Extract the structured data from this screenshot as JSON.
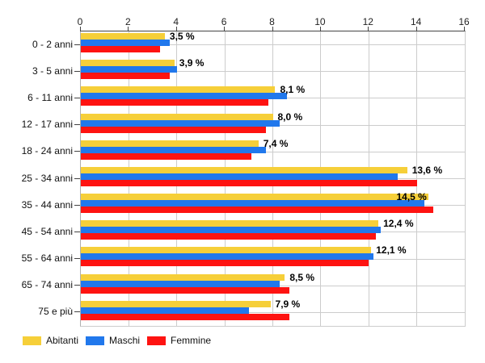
{
  "chart_data": {
    "type": "bar",
    "orientation": "horizontal",
    "title": "",
    "xlabel": "",
    "ylabel": "",
    "xlim": [
      0,
      16
    ],
    "x_ticks": [
      0,
      2,
      4,
      6,
      8,
      10,
      12,
      14,
      16
    ],
    "grid": true,
    "legend_position": "bottom",
    "categories": [
      "0 - 2 anni",
      "3 - 5 anni",
      "6 - 11 anni",
      "12 - 17 anni",
      "18 - 24 anni",
      "25 - 34 anni",
      "35 - 44 anni",
      "45 - 54 anni",
      "55 - 64 anni",
      "65 - 74 anni",
      "75 e più"
    ],
    "series": [
      {
        "name": "Abitanti",
        "color": "#F6CF39",
        "values": [
          3.5,
          3.9,
          8.1,
          8.0,
          7.4,
          13.6,
          14.5,
          12.4,
          12.1,
          8.5,
          7.9
        ]
      },
      {
        "name": "Maschi",
        "color": "#2178EC",
        "values": [
          3.7,
          4.0,
          8.6,
          8.3,
          7.7,
          13.2,
          14.3,
          12.5,
          12.2,
          8.3,
          7.0
        ]
      },
      {
        "name": "Femmine",
        "color": "#FE1311",
        "values": [
          3.3,
          3.7,
          7.8,
          7.7,
          7.1,
          14.0,
          14.7,
          12.3,
          12.0,
          8.7,
          8.7
        ]
      }
    ],
    "value_labels": [
      "3,5 %",
      "3,9 %",
      "8,1 %",
      "8,0 %",
      "7,4 %",
      "13,6 %",
      "14,5 %",
      "12,4 %",
      "12,1 %",
      "8,5 %",
      "7,9 %"
    ]
  },
  "legend": {
    "items": [
      {
        "label": "Abitanti",
        "color": "#F6CF39"
      },
      {
        "label": "Maschi",
        "color": "#2178EC"
      },
      {
        "label": "Femmine",
        "color": "#FE1311"
      }
    ]
  },
  "colors": {
    "background": "#FFFFFF",
    "gridline": "#CCCCCC",
    "axis_line": "#444444",
    "tick_text": "#222222",
    "value_label_text": "#000000"
  }
}
